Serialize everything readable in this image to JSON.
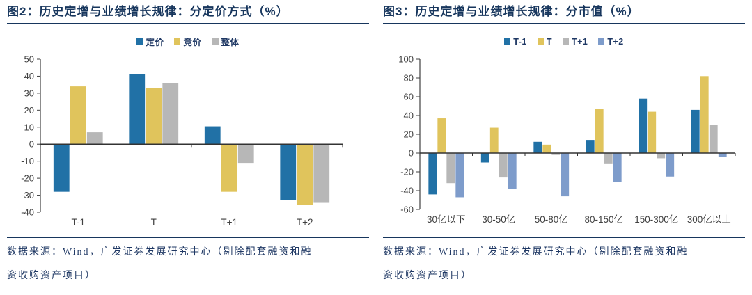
{
  "colors": {
    "title_navy": "#17365D",
    "source_navy": "#1F3864",
    "axis_gray": "#404040",
    "zero_line": "#333333",
    "series_blue": "#2171A6",
    "series_yellow": "#E0C45C",
    "series_gray": "#B7B7B7",
    "series_lightblue": "#7E9CCB"
  },
  "chart_data": [
    {
      "type": "bar",
      "title": "图2：历史定增与业绩增长规律：分定价方式（%）",
      "categories": [
        "T-1",
        "T",
        "T+1",
        "T+2"
      ],
      "series": [
        {
          "name": "定价",
          "color": "#2171A6",
          "values": [
            -28,
            41,
            10.5,
            -33
          ]
        },
        {
          "name": "竞价",
          "color": "#E0C45C",
          "values": [
            34,
            33,
            -28,
            -35.5
          ]
        },
        {
          "name": "整体",
          "color": "#B7B7B7",
          "values": [
            7,
            36,
            -11,
            -34.5
          ]
        }
      ],
      "ylim": [
        -40,
        50
      ],
      "ytick_step": 10,
      "grid": false,
      "legend_position": "top",
      "xlabel": "",
      "ylabel": "",
      "source_line1": "数据来源：Wind，广发证券发展研究中心（剔除配套融资和融",
      "source_line2": "资收购资产项目）"
    },
    {
      "type": "bar",
      "title": "图3：历史定增与业绩增长规律：分市值（%）",
      "categories": [
        "30亿以下",
        "30-50亿",
        "50-80亿",
        "80-150亿",
        "150-300亿",
        "300亿以上"
      ],
      "series": [
        {
          "name": "T-1",
          "color": "#2171A6",
          "values": [
            -44,
            -10,
            12,
            14,
            58,
            46
          ]
        },
        {
          "name": "T",
          "color": "#E0C45C",
          "values": [
            37,
            27,
            9,
            47,
            44,
            82
          ]
        },
        {
          "name": "T+1",
          "color": "#B7B7B7",
          "values": [
            -32,
            -26,
            -2,
            -11,
            -5.5,
            30
          ]
        },
        {
          "name": "T+2",
          "color": "#7E9CCB",
          "values": [
            -47,
            -38,
            -46,
            -31,
            -25,
            -4
          ]
        }
      ],
      "ylim": [
        -60,
        100
      ],
      "ytick_step": 20,
      "grid": false,
      "legend_position": "top",
      "xlabel": "",
      "ylabel": "",
      "source_line1": "数据来源：Wind，广发证券发展研究中心（剔除配套融资和融",
      "source_line2": "资收购资产项目）"
    }
  ]
}
